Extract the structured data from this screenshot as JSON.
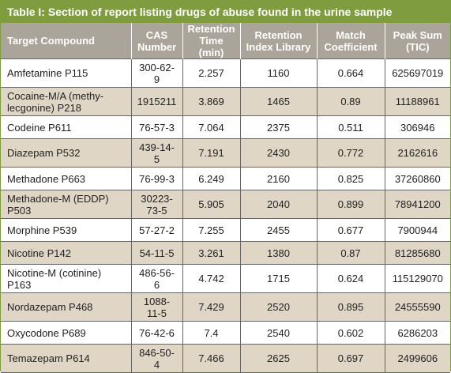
{
  "title": "Table I: Section of report listing drugs of abuse found in the urine sample",
  "table": {
    "headers": [
      "Target Compound",
      "CAS Number",
      "Retention Time (min)",
      "Retention Index Library",
      "Match Coefficient",
      "Peak Sum (TIC)"
    ],
    "rows": [
      [
        "Amfetamine P115",
        "300-62-9",
        2.257,
        1160,
        0.664,
        625697019
      ],
      [
        "Cocaine-M/A (methy-lecgonine) P218",
        "1915211",
        3.869,
        1465,
        0.89,
        11188961
      ],
      [
        "Codeine P611",
        "76-57-3",
        7.064,
        2375,
        0.511,
        306946
      ],
      [
        "Diazepam P532",
        "439-14-5",
        7.191,
        2430,
        0.772,
        2162616
      ],
      [
        "Methadone P663",
        "76-99-3",
        6.249,
        2160,
        0.825,
        37260860
      ],
      [
        "Methadone-M (EDDP) P503",
        "30223-73-5",
        5.905,
        2040,
        0.899,
        78941200
      ],
      [
        "Morphine P539",
        "57-27-2",
        7.255,
        2455,
        0.677,
        7900944
      ],
      [
        "Nicotine P142",
        "54-11-5",
        3.261,
        1380,
        0.87,
        81285680
      ],
      [
        "Nicotine-M (cotinine) P163",
        "486-56-6",
        4.742,
        1715,
        0.624,
        115129070
      ],
      [
        "Nordazepam P468",
        "1088-11-5",
        7.429,
        2520,
        0.895,
        24555590
      ],
      [
        "Oxycodone P689",
        "76-42-6",
        7.4,
        2540,
        0.602,
        6286203
      ],
      [
        "Temazepam P614",
        "846-50-4",
        7.466,
        2625,
        0.697,
        2499606
      ]
    ]
  }
}
